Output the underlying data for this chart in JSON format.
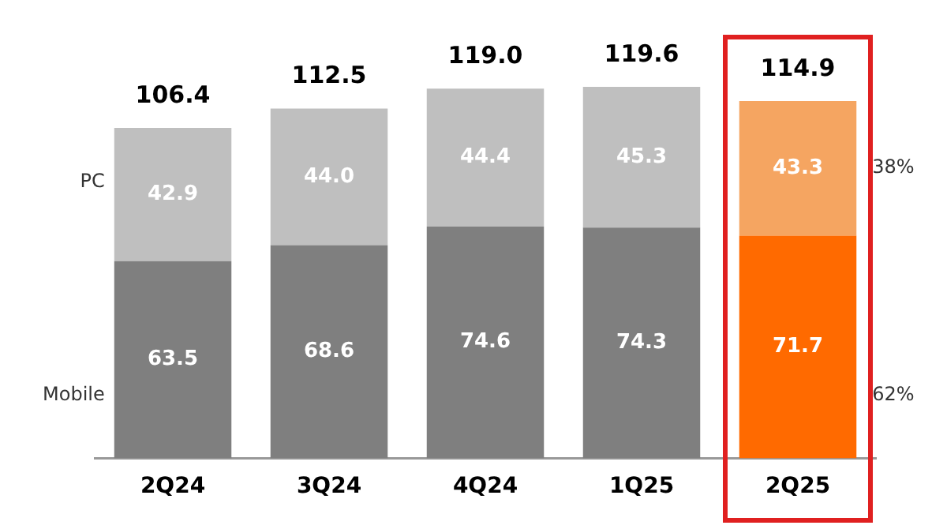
{
  "chart_data": {
    "type": "bar",
    "stacked": true,
    "categories": [
      "2Q24",
      "3Q24",
      "4Q24",
      "1Q25",
      "2Q25"
    ],
    "series": [
      {
        "name": "Mobile",
        "colors": [
          "#7f7f7f",
          "#7f7f7f",
          "#7f7f7f",
          "#7f7f7f",
          "#ff6a00"
        ],
        "values": [
          63.5,
          68.6,
          74.6,
          74.3,
          71.7
        ],
        "value_labels": [
          "63.5",
          "68.6",
          "74.6",
          "74.3",
          "71.7"
        ]
      },
      {
        "name": "PC",
        "colors": [
          "#bfbfbf",
          "#bfbfbf",
          "#bfbfbf",
          "#bfbfbf",
          "#f5a561"
        ],
        "values": [
          42.9,
          44.0,
          44.4,
          45.3,
          43.3
        ],
        "value_labels": [
          "42.9",
          "44.0",
          "44.4",
          "45.3",
          "43.3"
        ]
      }
    ],
    "totals": [
      "106.4",
      "112.5",
      "119.0",
      "119.6",
      "114.9"
    ],
    "annotations": [
      "38%",
      "62%"
    ],
    "legend": false,
    "grid": false
  }
}
